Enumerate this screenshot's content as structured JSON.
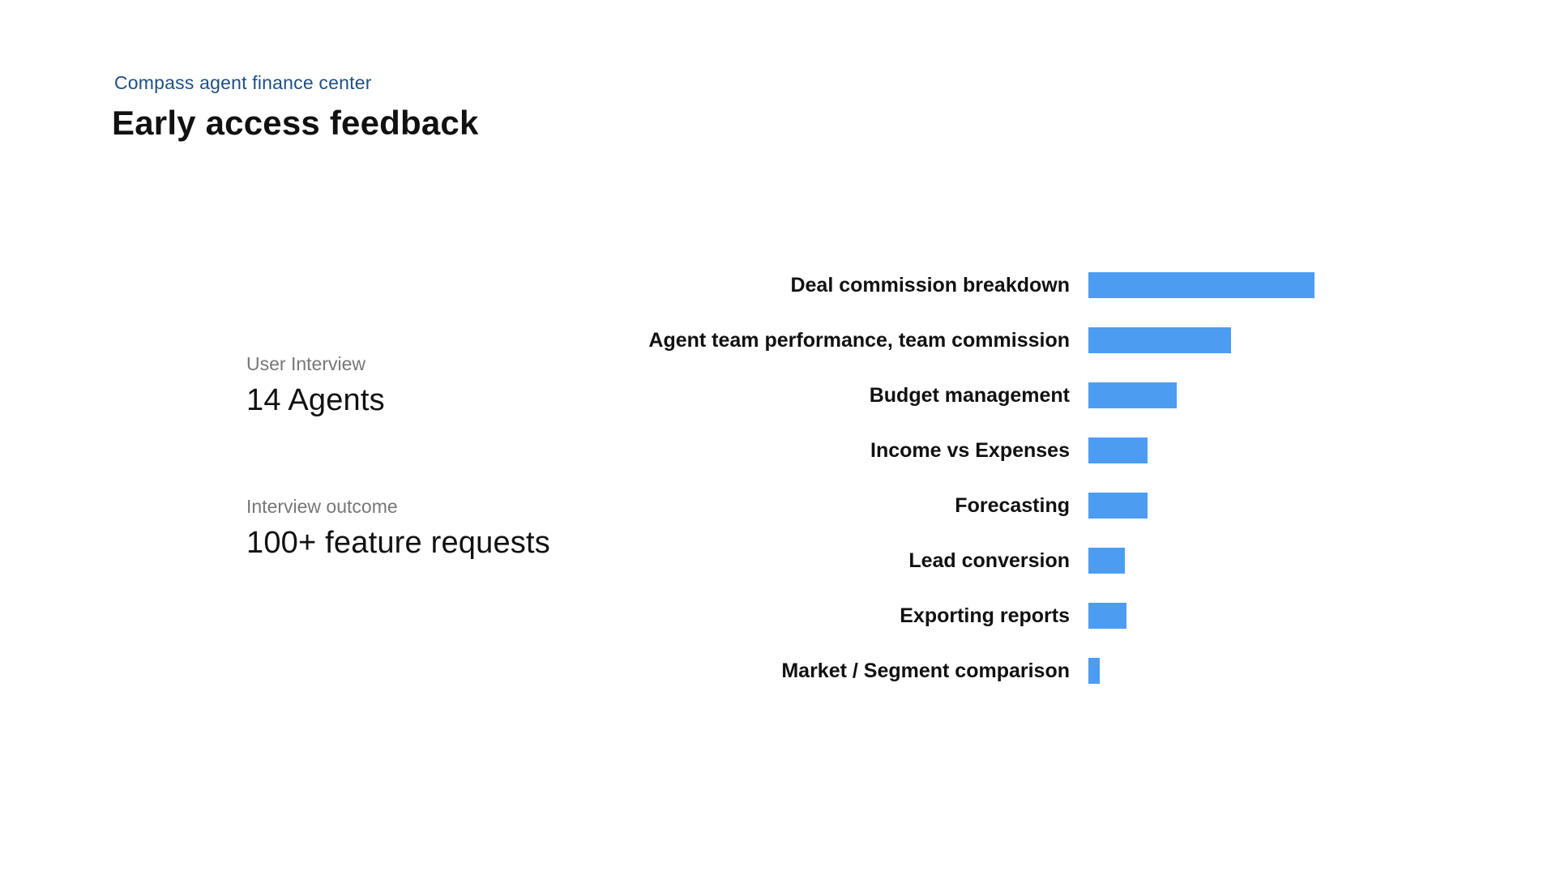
{
  "page": {
    "eyebrow": "Compass agent finance center",
    "title": "Early access feedback"
  },
  "stats": [
    {
      "label": "User Interview",
      "value": "14 Agents"
    },
    {
      "label": "Interview outcome",
      "value": "100+ feature requests"
    }
  ],
  "colors": {
    "background": "#FFFFFF",
    "eyebrow": "#1F5082",
    "bar": "#4C9CF1",
    "stat_label": "#777777",
    "text": "#111111"
  },
  "chart_data": {
    "type": "bar",
    "orientation": "horizontal",
    "title": "",
    "xlabel": "",
    "ylabel": "",
    "grid": false,
    "legend": false,
    "axis_ticks_visible": false,
    "value_scale": "relative percent of longest bar (no numeric axis shown)",
    "categories": [
      "Deal commission breakdown",
      "Agent team performance, team commission",
      "Budget management",
      "Income vs Expenses",
      "Forecasting",
      "Lead conversion",
      "Exporting reports",
      "Market / Segment comparison"
    ],
    "values": [
      100,
      63,
      39,
      26,
      26,
      16,
      17,
      5
    ]
  }
}
